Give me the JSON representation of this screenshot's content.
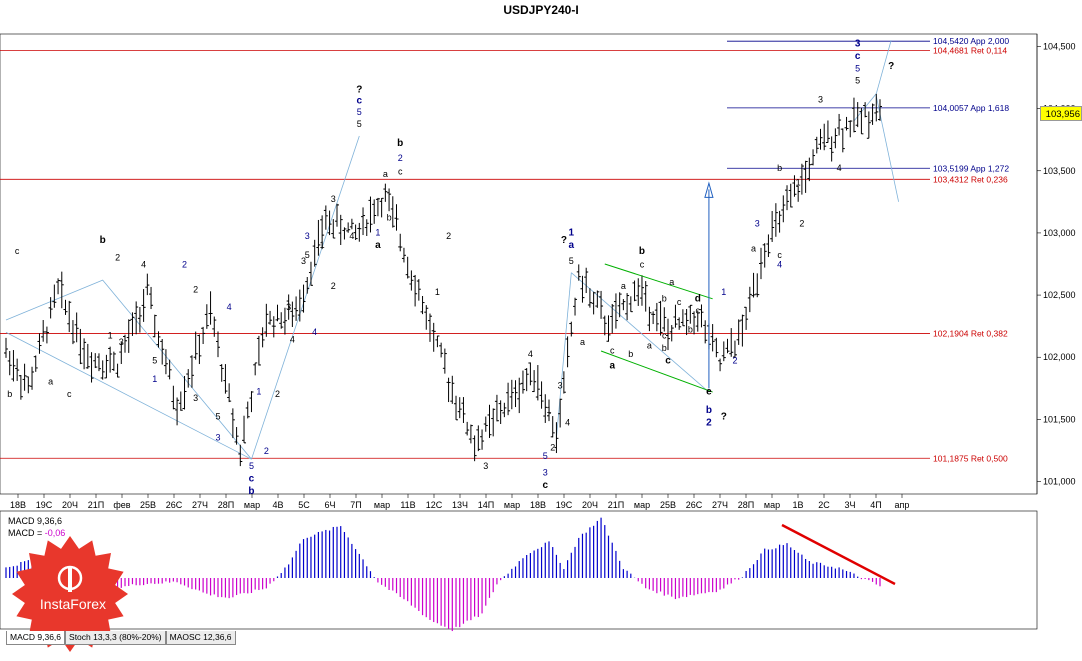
{
  "chart_data": {
    "type": "ohlc",
    "title": "USDJPY240-I",
    "price_axis": {
      "ylim": [
        100.9,
        104.6
      ],
      "ticks": [
        "104,500",
        "104,000",
        "103,500",
        "103,000",
        "102,500",
        "102,000",
        "101,500",
        "101,000"
      ],
      "tick_values": [
        104.5,
        104.0,
        103.5,
        103.0,
        102.5,
        102.0,
        101.5,
        101.0
      ],
      "current_price": "103,956"
    },
    "time_axis": {
      "ticks": [
        "18В",
        "19С",
        "20Ч",
        "21П",
        "фев",
        "25В",
        "26С",
        "27Ч",
        "28П",
        "мар",
        "4В",
        "5С",
        "6Ч",
        "7П",
        "мар",
        "11В",
        "12С",
        "13Ч",
        "14П",
        "мар",
        "18В",
        "19С",
        "20Ч",
        "21П",
        "мар",
        "25В",
        "26С",
        "27Ч",
        "28П",
        "мар",
        "1В",
        "2С",
        "3Ч",
        "4П",
        "апр"
      ]
    },
    "levels": [
      {
        "label": "104,5420 App 2,000",
        "value": 104.542,
        "color": "#00008b"
      },
      {
        "label": "104,4681 Ret 0,114",
        "value": 104.468,
        "color": "#cc0000"
      },
      {
        "label": "104,0057 App 1,618",
        "value": 104.0057,
        "color": "#00008b"
      },
      {
        "label": "103,5199 App 1,272",
        "value": 103.5199,
        "color": "#00008b"
      },
      {
        "label": "103,4312 Ret 0,236",
        "value": 103.4312,
        "color": "#cc0000"
      },
      {
        "label": "102,1904 Ret 0,382",
        "value": 102.1904,
        "color": "#cc0000"
      },
      {
        "label": "101,1875 Ret 0,500",
        "value": 101.1875,
        "color": "#cc0000"
      }
    ],
    "swing_points": [
      {
        "x": 0,
        "y": 102.05
      },
      {
        "x": 6,
        "y": 101.75
      },
      {
        "x": 14,
        "y": 102.55
      },
      {
        "x": 22,
        "y": 102.0
      },
      {
        "x": 30,
        "y": 101.95
      },
      {
        "x": 38,
        "y": 102.5
      },
      {
        "x": 46,
        "y": 101.6
      },
      {
        "x": 55,
        "y": 102.35
      },
      {
        "x": 63,
        "y": 101.25
      },
      {
        "x": 70,
        "y": 102.3
      },
      {
        "x": 78,
        "y": 102.35
      },
      {
        "x": 86,
        "y": 103.1
      },
      {
        "x": 94,
        "y": 103.0
      },
      {
        "x": 102,
        "y": 103.3
      },
      {
        "x": 110,
        "y": 102.6
      },
      {
        "x": 118,
        "y": 101.9
      },
      {
        "x": 126,
        "y": 101.3
      },
      {
        "x": 134,
        "y": 101.6
      },
      {
        "x": 142,
        "y": 101.9
      },
      {
        "x": 148,
        "y": 101.35
      },
      {
        "x": 154,
        "y": 102.65
      },
      {
        "x": 162,
        "y": 102.25
      },
      {
        "x": 170,
        "y": 102.55
      },
      {
        "x": 178,
        "y": 102.2
      },
      {
        "x": 186,
        "y": 102.35
      },
      {
        "x": 192,
        "y": 101.95
      },
      {
        "x": 198,
        "y": 102.2
      },
      {
        "x": 204,
        "y": 102.9
      },
      {
        "x": 212,
        "y": 103.3
      },
      {
        "x": 220,
        "y": 103.75
      },
      {
        "x": 228,
        "y": 103.9
      },
      {
        "x": 234,
        "y": 104.0
      }
    ],
    "bar_count": 236,
    "wave_labels": [
      {
        "t": "b",
        "x": 1,
        "y": 101.68,
        "c": "#000"
      },
      {
        "t": "c",
        "x": 3,
        "y": 102.83,
        "c": "#000"
      },
      {
        "t": "b",
        "x": 26,
        "y": 102.92,
        "c": "#000",
        "b": true
      },
      {
        "t": "2",
        "x": 30,
        "y": 102.78,
        "c": "#000"
      },
      {
        "t": "4",
        "x": 37,
        "y": 102.72,
        "c": "#000"
      },
      {
        "t": "2",
        "x": 48,
        "y": 102.72,
        "c": "#00008b"
      },
      {
        "t": "2",
        "x": 51,
        "y": 102.52,
        "c": "#000"
      },
      {
        "t": "4",
        "x": 60,
        "y": 102.38,
        "c": "#00008b"
      },
      {
        "t": "a",
        "x": 12,
        "y": 101.78,
        "c": "#000"
      },
      {
        "t": "c",
        "x": 17,
        "y": 101.68,
        "c": "#000"
      },
      {
        "t": "1",
        "x": 28,
        "y": 102.15,
        "c": "#000"
      },
      {
        "t": "3",
        "x": 31,
        "y": 102.1,
        "c": "#000"
      },
      {
        "t": "5",
        "x": 40,
        "y": 101.95,
        "c": "#000"
      },
      {
        "t": "1",
        "x": 40,
        "y": 101.8,
        "c": "#00008b"
      },
      {
        "t": "3",
        "x": 51,
        "y": 101.65,
        "c": "#000"
      },
      {
        "t": "5",
        "x": 57,
        "y": 101.5,
        "c": "#000"
      },
      {
        "t": "3",
        "x": 57,
        "y": 101.33,
        "c": "#00008b"
      },
      {
        "t": "1",
        "x": 68,
        "y": 101.7,
        "c": "#00008b"
      },
      {
        "t": "2",
        "x": 70,
        "y": 101.22,
        "c": "#00008b"
      },
      {
        "t": "2",
        "x": 73,
        "y": 101.68,
        "c": "#000"
      },
      {
        "t": "5",
        "x": 66,
        "y": 101.1,
        "c": "#00008b"
      },
      {
        "t": "c",
        "x": 66,
        "y": 101.0,
        "c": "#00008b",
        "b": true
      },
      {
        "t": "b",
        "x": 66,
        "y": 100.9,
        "c": "#00008b",
        "b": true
      },
      {
        "t": "3",
        "x": 76,
        "y": 102.38,
        "c": "#000"
      },
      {
        "t": "4",
        "x": 77,
        "y": 102.12,
        "c": "#000"
      },
      {
        "t": "4",
        "x": 83,
        "y": 102.18,
        "c": "#00008b"
      },
      {
        "t": "3",
        "x": 80,
        "y": 102.75,
        "c": "#000"
      },
      {
        "t": "5",
        "x": 81,
        "y": 102.8,
        "c": "#000"
      },
      {
        "t": "1",
        "x": 85,
        "y": 102.88,
        "c": "#000"
      },
      {
        "t": "2",
        "x": 88,
        "y": 102.55,
        "c": "#000"
      },
      {
        "t": "3",
        "x": 81,
        "y": 102.95,
        "c": "#00008b"
      },
      {
        "t": "3",
        "x": 88,
        "y": 103.25,
        "c": "#000"
      },
      {
        "t": "4",
        "x": 93,
        "y": 102.95,
        "c": "#000"
      },
      {
        "t": "5",
        "x": 95,
        "y": 103.85,
        "c": "#000"
      },
      {
        "t": "5",
        "x": 95,
        "y": 103.95,
        "c": "#00008b"
      },
      {
        "t": "c",
        "x": 95,
        "y": 104.04,
        "c": "#00008b",
        "b": true
      },
      {
        "t": "?",
        "x": 95,
        "y": 104.13,
        "c": "#000",
        "b": true
      },
      {
        "t": "a",
        "x": 102,
        "y": 103.45,
        "c": "#000"
      },
      {
        "t": "c",
        "x": 106,
        "y": 103.47,
        "c": "#000"
      },
      {
        "t": "2",
        "x": 106,
        "y": 103.58,
        "c": "#00008b"
      },
      {
        "t": "b",
        "x": 106,
        "y": 103.7,
        "c": "#000",
        "b": true
      },
      {
        "t": "b",
        "x": 103,
        "y": 103.1,
        "c": "#000"
      },
      {
        "t": "1",
        "x": 100,
        "y": 102.98,
        "c": "#00008b"
      },
      {
        "t": "a",
        "x": 100,
        "y": 102.88,
        "c": "#000",
        "b": true
      },
      {
        "t": "2",
        "x": 119,
        "y": 102.95,
        "c": "#000"
      },
      {
        "t": "1",
        "x": 116,
        "y": 102.5,
        "c": "#000"
      },
      {
        "t": "3",
        "x": 129,
        "y": 101.1,
        "c": "#000"
      },
      {
        "t": "4",
        "x": 141,
        "y": 102.0,
        "c": "#000"
      },
      {
        "t": "1",
        "x": 146,
        "y": 101.55,
        "c": "#000"
      },
      {
        "t": "2",
        "x": 147,
        "y": 101.25,
        "c": "#000"
      },
      {
        "t": "3",
        "x": 149,
        "y": 101.75,
        "c": "#000"
      },
      {
        "t": "4",
        "x": 151,
        "y": 101.45,
        "c": "#000"
      },
      {
        "t": "5",
        "x": 145,
        "y": 101.18,
        "c": "#00008b"
      },
      {
        "t": "3",
        "x": 145,
        "y": 101.05,
        "c": "#00008b"
      },
      {
        "t": "c",
        "x": 145,
        "y": 100.95,
        "c": "#000",
        "b": true
      },
      {
        "t": "5",
        "x": 152,
        "y": 102.75,
        "c": "#000"
      },
      {
        "t": "a",
        "x": 152,
        "y": 102.88,
        "c": "#00008b",
        "b": true
      },
      {
        "t": "1",
        "x": 152,
        "y": 102.98,
        "c": "#00008b",
        "b": true
      },
      {
        "t": "?",
        "x": 150,
        "y": 102.92,
        "c": "#000",
        "b": true
      },
      {
        "t": "a",
        "x": 155,
        "y": 102.1,
        "c": "#000"
      },
      {
        "t": "c",
        "x": 163,
        "y": 102.03,
        "c": "#000"
      },
      {
        "t": "a",
        "x": 163,
        "y": 101.91,
        "c": "#000",
        "b": true
      },
      {
        "t": "a",
        "x": 166,
        "y": 102.55,
        "c": "#000"
      },
      {
        "t": "b",
        "x": 168,
        "y": 102.0,
        "c": "#000"
      },
      {
        "t": "a",
        "x": 173,
        "y": 102.07,
        "c": "#000"
      },
      {
        "t": "c",
        "x": 171,
        "y": 102.72,
        "c": "#000"
      },
      {
        "t": "b",
        "x": 171,
        "y": 102.83,
        "c": "#000",
        "b": true
      },
      {
        "t": "b",
        "x": 177,
        "y": 102.45,
        "c": "#000"
      },
      {
        "t": "a",
        "x": 179,
        "y": 102.58,
        "c": "#000"
      },
      {
        "t": "c",
        "x": 181,
        "y": 102.42,
        "c": "#000"
      },
      {
        "t": "c",
        "x": 177,
        "y": 102.15,
        "c": "#000"
      },
      {
        "t": "b",
        "x": 177,
        "y": 102.05,
        "c": "#000"
      },
      {
        "t": "c",
        "x": 178,
        "y": 101.95,
        "c": "#000",
        "b": true
      },
      {
        "t": "b",
        "x": 184,
        "y": 102.2,
        "c": "#000"
      },
      {
        "t": "c",
        "x": 186,
        "y": 102.35,
        "c": "#000"
      },
      {
        "t": "d",
        "x": 186,
        "y": 102.45,
        "c": "#000",
        "b": true
      },
      {
        "t": "e",
        "x": 189,
        "y": 101.7,
        "c": "#000",
        "b": true
      },
      {
        "t": "b",
        "x": 189,
        "y": 101.55,
        "c": "#00008b",
        "b": true
      },
      {
        "t": "2",
        "x": 189,
        "y": 101.45,
        "c": "#00008b",
        "b": true
      },
      {
        "t": "?",
        "x": 193,
        "y": 101.5,
        "c": "#000",
        "b": true
      },
      {
        "t": "1",
        "x": 193,
        "y": 102.5,
        "c": "#00008b"
      },
      {
        "t": "2",
        "x": 196,
        "y": 101.95,
        "c": "#00008b"
      },
      {
        "t": "a",
        "x": 201,
        "y": 102.85,
        "c": "#000"
      },
      {
        "t": "3",
        "x": 202,
        "y": 103.05,
        "c": "#00008b"
      },
      {
        "t": "c",
        "x": 208,
        "y": 102.8,
        "c": "#000"
      },
      {
        "t": "4",
        "x": 208,
        "y": 102.72,
        "c": "#00008b"
      },
      {
        "t": "b",
        "x": 208,
        "y": 103.5,
        "c": "#000"
      },
      {
        "t": "2",
        "x": 214,
        "y": 103.05,
        "c": "#000"
      },
      {
        "t": "1",
        "x": 213,
        "y": 103.38,
        "c": "#000"
      },
      {
        "t": "4",
        "x": 224,
        "y": 103.5,
        "c": "#000"
      },
      {
        "t": "3",
        "x": 219,
        "y": 104.05,
        "c": "#000"
      },
      {
        "t": "5",
        "x": 229,
        "y": 104.2,
        "c": "#000"
      },
      {
        "t": "5",
        "x": 229,
        "y": 104.3,
        "c": "#00008b"
      },
      {
        "t": "c",
        "x": 229,
        "y": 104.4,
        "c": "#00008b",
        "b": true
      },
      {
        "t": "3",
        "x": 229,
        "y": 104.5,
        "c": "#00008b",
        "b": true
      },
      {
        "t": "?",
        "x": 238,
        "y": 104.32,
        "c": "#000",
        "b": true
      }
    ]
  },
  "macd": {
    "label_line1": "MACD 9,36,6",
    "label_line2_prefix": "MACD = ",
    "label_line2_value": "-0,06",
    "value_color": "#cc00cc",
    "hist_color_pos": "#0000cc",
    "hist_color_neg": "#cc00cc",
    "trend_color": "#e00000"
  },
  "tabs": [
    "MACD 9,36,6",
    "Stoch 13,3,3 (80%-20%)",
    "MAOSC 12,36,6"
  ],
  "logo": {
    "text": "InstaForex",
    "color": "#e8372c"
  },
  "line_colors": {
    "bars": "#000000",
    "fib_red": "#cc0000",
    "fib_blue": "#00008b",
    "wave_lines": "#7fb2d9",
    "channel": "#00b000",
    "arrow": "#2060c0"
  }
}
